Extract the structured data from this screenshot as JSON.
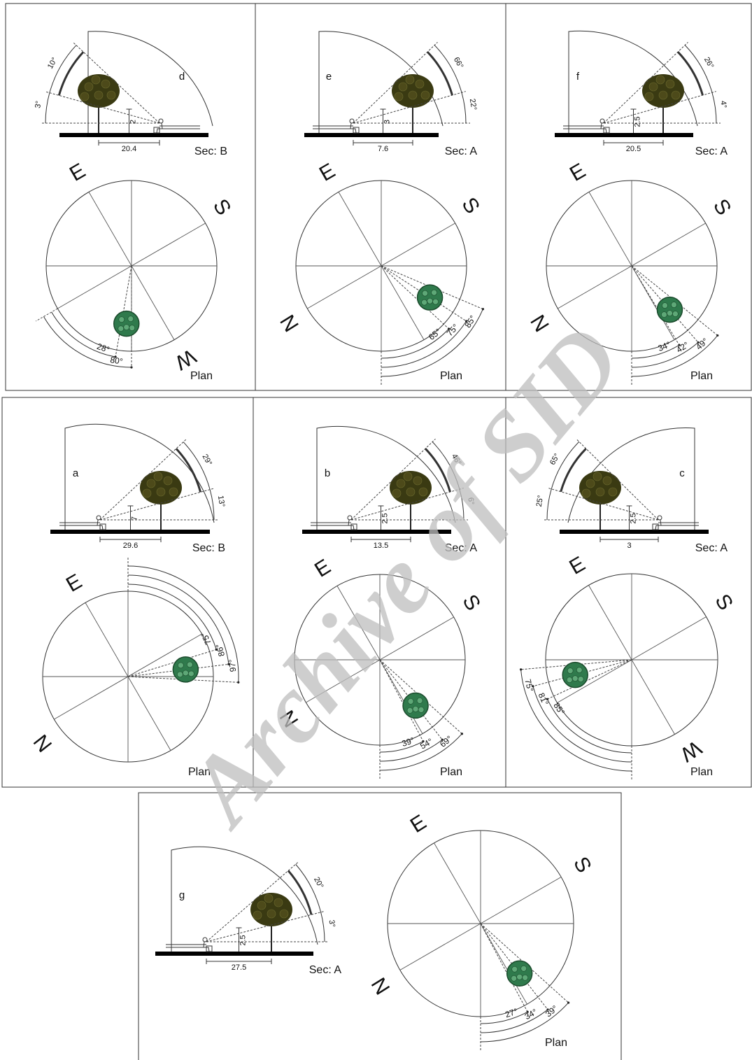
{
  "panels": [
    {
      "id": "d",
      "section": {
        "angles": [
          "10°",
          "3°"
        ],
        "height": "2",
        "distance": "20.4",
        "name": "Sec: B"
      },
      "plan": {
        "compass": [
          "E",
          "S",
          "W"
        ],
        "angles": [
          "28°",
          "80°"
        ],
        "name": "Plan"
      }
    },
    {
      "id": "e",
      "section": {
        "angles": [
          "66°",
          "22°"
        ],
        "height": "3",
        "distance": "7.6",
        "name": "Sec: A"
      },
      "plan": {
        "compass": [
          "E",
          "S",
          "N"
        ],
        "angles": [
          "65°",
          "75°",
          "85°"
        ],
        "name": "Plan"
      }
    },
    {
      "id": "f",
      "section": {
        "angles": [
          "26°",
          "4°"
        ],
        "height": "2.5",
        "distance": "20.5",
        "name": "Sec: A"
      },
      "plan": {
        "compass": [
          "E",
          "S",
          "N"
        ],
        "angles": [
          "34°",
          "42°",
          "49°"
        ],
        "name": "Plan"
      }
    },
    {
      "id": "a",
      "section": {
        "angles": [
          "29°",
          "13°"
        ],
        "height": "7",
        "distance": "29.6",
        "name": "Sec: B"
      },
      "plan": {
        "compass": [
          "E",
          "N"
        ],
        "angles": [
          "75°",
          "86°",
          "97°"
        ],
        "name": "Plan"
      }
    },
    {
      "id": "b",
      "section": {
        "angles": [
          "46°",
          "6°"
        ],
        "height": "2.5",
        "distance": "13.5",
        "name": "Sec: A"
      },
      "plan": {
        "compass": [
          "E",
          "S",
          "N"
        ],
        "angles": [
          "39°",
          "54°",
          "69°"
        ],
        "name": "Plan"
      }
    },
    {
      "id": "c",
      "section": {
        "angles": [
          "65°",
          "25°"
        ],
        "height": "2.5",
        "distance": "3",
        "name": "Sec: A"
      },
      "plan": {
        "compass": [
          "E",
          "S",
          "W"
        ],
        "angles": [
          "85°",
          "81°",
          "75°"
        ],
        "name": "Plan"
      }
    },
    {
      "id": "g",
      "section": {
        "angles": [
          "20°",
          "3°"
        ],
        "height": "2.5",
        "distance": "27.5",
        "name": "Sec: A"
      },
      "plan": {
        "compass": [
          "E",
          "S",
          "N"
        ],
        "angles": [
          "27°",
          "34°",
          "39°"
        ],
        "name": "Plan"
      }
    }
  ],
  "watermark": "Archive of SID"
}
